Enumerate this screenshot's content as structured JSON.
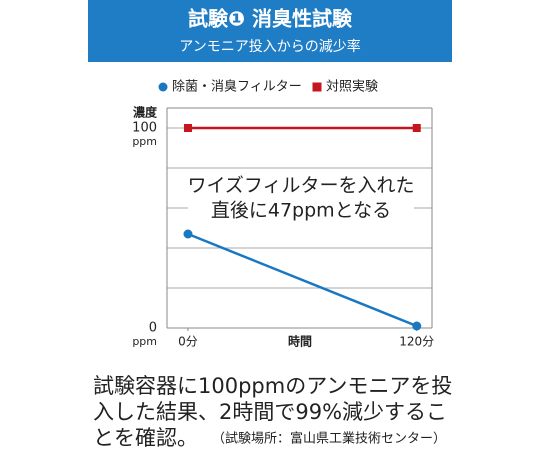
{
  "chart_data": {
    "type": "line",
    "title": "試験❶ 消臭性試験",
    "subtitle": "アンモニア投入からの減少率",
    "y_label": "濃度",
    "y_unit": "ppm",
    "x_label": "時間",
    "x": [
      0,
      120
    ],
    "series": [
      {
        "name": "除菌・消臭フィルター",
        "color": "#1a78c2",
        "values": [
          47,
          1
        ]
      },
      {
        "name": "対照実験",
        "color": "#c4161c",
        "values": [
          100,
          100
        ]
      }
    ],
    "xlim": [
      -11,
      128
    ],
    "xticks": [
      {
        "value": 0,
        "label": "0分"
      },
      {
        "value": 120,
        "label": "120分"
      }
    ],
    "ylim": [
      0,
      110
    ],
    "yticks": [
      0,
      100
    ],
    "ygrid": [
      20,
      40,
      60,
      80
    ],
    "annotation": [
      "ワイズフィルターを入れた",
      "直後に47ppmとなる"
    ]
  },
  "caption": {
    "lines": [
      "試験容器に100ppmのアンモニアを投",
      "入した結果、2時間で99%減少するこ",
      "とを確認。"
    ],
    "note": "（試験場所：富山県工業技術センター）"
  }
}
